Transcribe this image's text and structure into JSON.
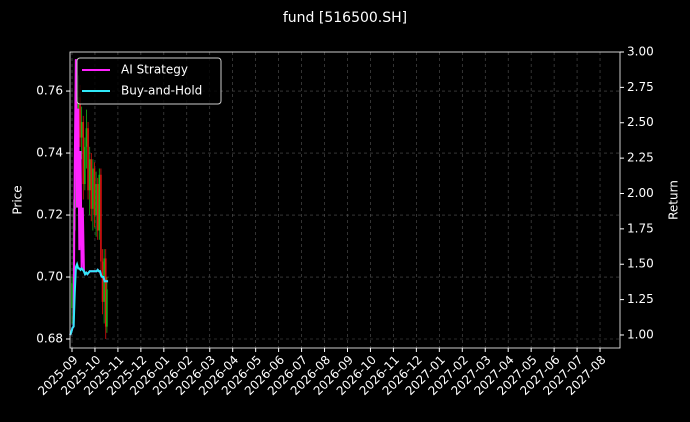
{
  "chart_data": {
    "type": "candlestick",
    "title": "fund [516500.SH]",
    "ylabel": "Price",
    "y2label": "Return",
    "grid": true,
    "legend": "upper left",
    "up_color": "#18b418",
    "down_color": "#e01010",
    "xlim": [
      -0.087,
      23.87
    ],
    "xticks": [
      {
        "value": 0,
        "label": "2025-09"
      },
      {
        "value": 1,
        "label": "2025-10"
      },
      {
        "value": 2,
        "label": "2025-11"
      },
      {
        "value": 3,
        "label": "2025-12"
      },
      {
        "value": 4,
        "label": "2026-01"
      },
      {
        "value": 5,
        "label": "2026-02"
      },
      {
        "value": 6,
        "label": "2026-03"
      },
      {
        "value": 7,
        "label": "2026-04"
      },
      {
        "value": 8,
        "label": "2026-05"
      },
      {
        "value": 9,
        "label": "2026-06"
      },
      {
        "value": 10,
        "label": "2026-07"
      },
      {
        "value": 11,
        "label": "2026-08"
      },
      {
        "value": 12,
        "label": "2026-09"
      },
      {
        "value": 13,
        "label": "2026-10"
      },
      {
        "value": 14,
        "label": "2026-11"
      },
      {
        "value": 15,
        "label": "2026-12"
      },
      {
        "value": 16,
        "label": "2027-01"
      },
      {
        "value": 17,
        "label": "2027-02"
      },
      {
        "value": 18,
        "label": "2027-03"
      },
      {
        "value": 19,
        "label": "2027-04"
      },
      {
        "value": 20,
        "label": "2027-05"
      },
      {
        "value": 21,
        "label": "2027-06"
      },
      {
        "value": 22,
        "label": "2027-07"
      },
      {
        "value": 23,
        "label": "2027-08"
      }
    ],
    "ylim": [
      0.6771,
      0.7726
    ],
    "yticks": [
      {
        "value": 0.68,
        "label": "0.68"
      },
      {
        "value": 0.7,
        "label": "0.70"
      },
      {
        "value": 0.72,
        "label": "0.72"
      },
      {
        "value": 0.74,
        "label": "0.74"
      },
      {
        "value": 0.76,
        "label": "0.76"
      }
    ],
    "y2lim": [
      0.908,
      3.0
    ],
    "y2ticks": [
      {
        "value": 1,
        "label": "1.00"
      },
      {
        "value": 1.25,
        "label": "1.25"
      },
      {
        "value": 1.5,
        "label": "1.50"
      },
      {
        "value": 1.75,
        "label": "1.75"
      },
      {
        "value": 2,
        "label": "2.00"
      },
      {
        "value": 2.25,
        "label": "2.25"
      },
      {
        "value": 2.5,
        "label": "2.50"
      },
      {
        "value": 2.75,
        "label": "2.75"
      },
      {
        "value": 3,
        "label": "3.00"
      }
    ],
    "candles": {
      "x": [
        0.0,
        0.07,
        0.14,
        0.21,
        0.28,
        0.35,
        0.42,
        0.49,
        0.56,
        0.63,
        0.7,
        0.77,
        0.84,
        0.91,
        0.98,
        1.05,
        1.12,
        1.19,
        1.26,
        1.33,
        1.4,
        1.47,
        1.52
      ],
      "open": [
        0.69,
        0.698,
        0.722,
        0.76,
        0.74,
        0.758,
        0.745,
        0.75,
        0.73,
        0.742,
        0.748,
        0.728,
        0.738,
        0.722,
        0.735,
        0.72,
        0.73,
        0.715,
        0.733,
        0.705,
        0.692,
        0.706,
        0.684
      ],
      "high": [
        0.7,
        0.725,
        0.77,
        0.768,
        0.765,
        0.762,
        0.755,
        0.752,
        0.745,
        0.754,
        0.75,
        0.742,
        0.74,
        0.738,
        0.737,
        0.734,
        0.732,
        0.735,
        0.735,
        0.709,
        0.709,
        0.709,
        0.7
      ],
      "low": [
        0.685,
        0.695,
        0.715,
        0.735,
        0.735,
        0.742,
        0.738,
        0.725,
        0.728,
        0.735,
        0.725,
        0.72,
        0.718,
        0.715,
        0.716,
        0.713,
        0.712,
        0.712,
        0.7,
        0.688,
        0.685,
        0.68,
        0.682
      ],
      "close": [
        0.698,
        0.722,
        0.76,
        0.74,
        0.758,
        0.745,
        0.75,
        0.73,
        0.742,
        0.748,
        0.728,
        0.738,
        0.722,
        0.735,
        0.72,
        0.73,
        0.715,
        0.733,
        0.705,
        0.692,
        0.706,
        0.684,
        0.696
      ]
    },
    "x": [
      -0.08,
      -0.03,
      0.02,
      0.07,
      0.12,
      0.17,
      0.22,
      0.27,
      0.32,
      0.37,
      0.42,
      0.47,
      0.52,
      0.57,
      0.62,
      0.67,
      0.72,
      0.77,
      0.82,
      0.87,
      0.92,
      0.97,
      1.02,
      1.07,
      1.12,
      1.17,
      1.22,
      1.27,
      1.32,
      1.37,
      1.42,
      1.47,
      1.52,
      1.57
    ],
    "series": [
      {
        "name": "AI Strategy",
        "color": "#ff22ff",
        "axis": "y2",
        "values": [
          1.0,
          1.02,
          1.05,
          1.06,
          2.2,
          2.95,
          1.9,
          2.6,
          1.6,
          2.3,
          1.47,
          1.9,
          1.45,
          1.43,
          1.44,
          1.43,
          1.44,
          1.45,
          1.45,
          1.45,
          1.45,
          1.45,
          1.45,
          1.45,
          1.46,
          1.45,
          1.45,
          1.42,
          1.41,
          1.41,
          1.38,
          1.38,
          1.38,
          1.38
        ]
      },
      {
        "name": "Buy-and-Hold",
        "color": "#30e8f8",
        "axis": "y2",
        "values": [
          1.0,
          1.02,
          1.05,
          1.06,
          1.3,
          1.48,
          1.5,
          1.47,
          1.47,
          1.46,
          1.47,
          1.46,
          1.45,
          1.43,
          1.44,
          1.43,
          1.44,
          1.45,
          1.45,
          1.45,
          1.45,
          1.45,
          1.45,
          1.45,
          1.46,
          1.45,
          1.45,
          1.42,
          1.41,
          1.41,
          1.38,
          1.38,
          1.38,
          1.38
        ]
      }
    ]
  }
}
